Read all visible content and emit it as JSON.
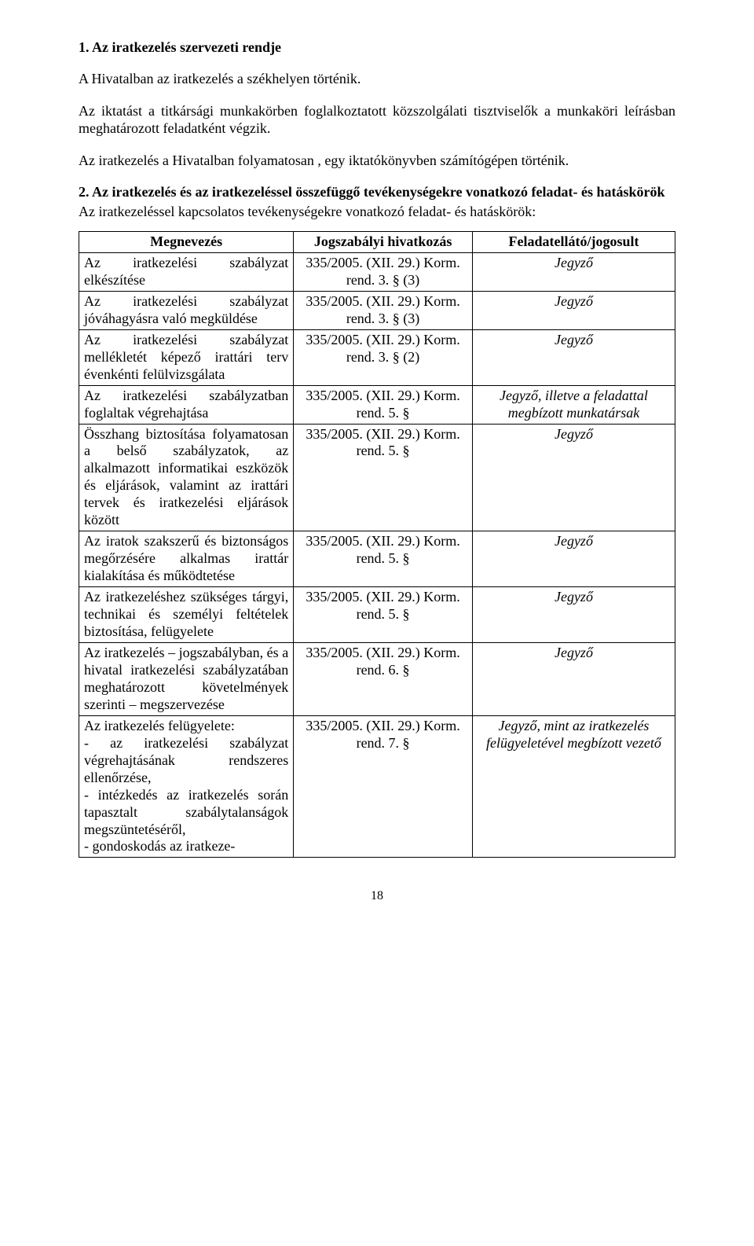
{
  "heading1": "1. Az iratkezelés szervezeti rendje",
  "p1": "A  Hivatalban az iratkezelés  a székhelyen   történik.",
  "p2": "Az iktatást a titkársági  munkakörben foglalkoztatott közszolgálati tisztviselők a munkaköri leírásban meghatározott feladatként  végzik.",
  "p3": "Az iratkezelés  a  Hivatalban folyamatosan , egy iktatókönyvben számítógépen  történik.",
  "heading2": "2. Az iratkezelés és az iratkezeléssel összefüggő tevékenységekre vonatkozó feladat- és hatáskörök",
  "sub2": "Az iratkezeléssel kapcsolatos tevékenységekre vonatkozó feladat- és hatáskörök:",
  "table": {
    "headers": {
      "c1": "Megnevezés",
      "c2": "Jogszabályi hivatkozás",
      "c3": "Feladatellátó/jogosult"
    },
    "rows": [
      {
        "name": "Az iratkezelési szabályzat elkészítése",
        "ref": "335/2005. (XII. 29.) Korm. rend. 3. § (3)",
        "resp": "Jegyző"
      },
      {
        "name": "Az iratkezelési szabályzat jóváhagyásra való megküldése",
        "ref": "335/2005. (XII. 29.) Korm. rend. 3. § (3)",
        "resp": "Jegyző"
      },
      {
        "name": "Az iratkezelési szabályzat mellékletét képező irattári terv évenkénti felülvizsgálata",
        "ref": "335/2005. (XII. 29.) Korm. rend. 3. § (2)",
        "resp": "Jegyző"
      },
      {
        "name": "Az iratkezelési szabályzatban foglaltak végrehajtása",
        "ref": "335/2005. (XII. 29.) Korm. rend. 5. §",
        "resp": "Jegyző, illetve a feladattal megbízott munkatársak"
      },
      {
        "name": "Összhang biztosítása folyamatosan a belső szabályzatok, az alkalmazott informatikai eszközök és eljárások, valamint az irattári tervek és iratkezelési eljárások között",
        "ref": "335/2005. (XII. 29.) Korm. rend. 5. §",
        "resp": "Jegyző"
      },
      {
        "name": "Az iratok szakszerű és biztonságos megőrzésére alkalmas irattár kialakítása és működtetése",
        "ref": "335/2005. (XII. 29.) Korm. rend. 5. §",
        "resp": "Jegyző"
      },
      {
        "name": "Az iratkezeléshez szükséges tárgyi, technikai és személyi feltételek biztosítása, felügyelete",
        "ref": "335/2005. (XII. 29.) Korm. rend. 5. §",
        "resp": "Jegyző"
      },
      {
        "name": "Az iratkezelés – jogszabályban, és a hivatal iratkezelési szabályzatában meghatározott követelmények szerinti – megszervezése",
        "ref": "335/2005. (XII. 29.) Korm. rend. 6. §",
        "resp": "Jegyző"
      },
      {
        "name": "Az iratkezelés felügyelete:\n- az iratkezelési szabályzat végrehajtásának rendszeres ellenőrzése,\n- intézkedés az iratkezelés során tapasztalt szabálytalanságok megszüntetéséről,\n- gondoskodás az iratkeze-",
        "ref": "335/2005. (XII. 29.) Korm. rend. 7. §",
        "resp": "Jegyző, mint az iratkezelés felügyeletével megbízott vezető"
      }
    ]
  },
  "pageNumber": "18"
}
